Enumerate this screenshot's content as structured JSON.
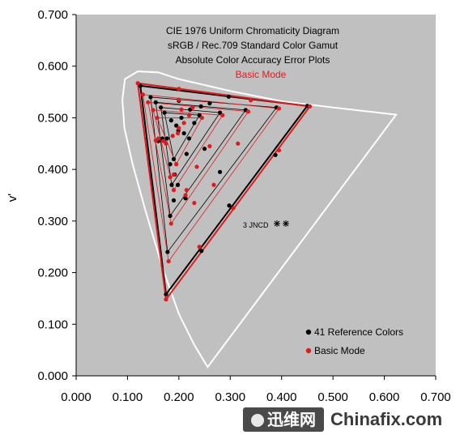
{
  "chart_data": {
    "type": "scatter",
    "title_lines": [
      "CIE 1976 Uniform Chromaticity Diagram",
      "sRGB / Rec.709 Standard Color Gamut",
      "Absolute Color Accuracy Error Plots"
    ],
    "mode_label": "Basic Mode",
    "xlabel": "",
    "ylabel": "v'",
    "xlim": [
      0.0,
      0.7
    ],
    "ylim": [
      0.0,
      0.7
    ],
    "xticks": [
      "0.000",
      "0.100",
      "0.200",
      "0.300",
      "0.400",
      "0.500",
      "0.600",
      "0.700"
    ],
    "yticks": [
      "0.000",
      "0.100",
      "0.200",
      "0.300",
      "0.400",
      "0.500",
      "0.600",
      "0.700"
    ],
    "annotation": "3 JNCD",
    "legend": [
      {
        "label": "41 Reference Colors",
        "color": "#000000"
      },
      {
        "label": "Basic Mode",
        "color": "#e31a1c"
      }
    ],
    "colors": {
      "plot_bg": "#c0c0c0",
      "locus": "#ffffff",
      "reference": "#000000",
      "mode": "#e31a1c"
    },
    "spectral_locus": [
      [
        0.256,
        0.017
      ],
      [
        0.23,
        0.06
      ],
      [
        0.2,
        0.12
      ],
      [
        0.168,
        0.21
      ],
      [
        0.135,
        0.32
      ],
      [
        0.11,
        0.41
      ],
      [
        0.094,
        0.48
      ],
      [
        0.09,
        0.535
      ],
      [
        0.095,
        0.575
      ],
      [
        0.12,
        0.59
      ],
      [
        0.16,
        0.588
      ],
      [
        0.2,
        0.575
      ],
      [
        0.3,
        0.552
      ],
      [
        0.4,
        0.532
      ],
      [
        0.5,
        0.52
      ],
      [
        0.623,
        0.506
      ]
    ],
    "reference_triangles": [
      [
        [
          0.125,
          0.562
        ],
        [
          0.45,
          0.523
        ],
        [
          0.175,
          0.158
        ]
      ],
      [
        [
          0.145,
          0.54
        ],
        [
          0.39,
          0.52
        ],
        [
          0.178,
          0.24
        ]
      ],
      [
        [
          0.155,
          0.53
        ],
        [
          0.33,
          0.515
        ],
        [
          0.183,
          0.31
        ]
      ],
      [
        [
          0.165,
          0.52
        ],
        [
          0.28,
          0.51
        ],
        [
          0.186,
          0.37
        ]
      ],
      [
        [
          0.172,
          0.51
        ],
        [
          0.24,
          0.505
        ],
        [
          0.19,
          0.42
        ]
      ]
    ],
    "mode_triangles": [
      [
        [
          0.12,
          0.567
        ],
        [
          0.455,
          0.522
        ],
        [
          0.175,
          0.148
        ]
      ],
      [
        [
          0.13,
          0.545
        ],
        [
          0.395,
          0.518
        ],
        [
          0.18,
          0.222
        ]
      ],
      [
        [
          0.14,
          0.53
        ],
        [
          0.335,
          0.512
        ],
        [
          0.185,
          0.295
        ]
      ],
      [
        [
          0.15,
          0.515
        ],
        [
          0.285,
          0.505
        ],
        [
          0.19,
          0.36
        ]
      ],
      [
        [
          0.158,
          0.5
        ],
        [
          0.245,
          0.5
        ],
        [
          0.195,
          0.41
        ]
      ]
    ],
    "reference_points": [
      [
        0.125,
        0.562
      ],
      [
        0.45,
        0.523
      ],
      [
        0.175,
        0.158
      ],
      [
        0.297,
        0.541
      ],
      [
        0.388,
        0.428
      ],
      [
        0.244,
        0.242
      ],
      [
        0.145,
        0.54
      ],
      [
        0.39,
        0.52
      ],
      [
        0.178,
        0.24
      ],
      [
        0.26,
        0.528
      ],
      [
        0.298,
        0.33
      ],
      [
        0.213,
        0.344
      ],
      [
        0.155,
        0.53
      ],
      [
        0.33,
        0.515
      ],
      [
        0.183,
        0.31
      ],
      [
        0.243,
        0.522
      ],
      [
        0.28,
        0.395
      ],
      [
        0.198,
        0.37
      ],
      [
        0.165,
        0.52
      ],
      [
        0.28,
        0.51
      ],
      [
        0.186,
        0.37
      ],
      [
        0.222,
        0.516
      ],
      [
        0.25,
        0.44
      ],
      [
        0.192,
        0.39
      ],
      [
        0.172,
        0.51
      ],
      [
        0.24,
        0.505
      ],
      [
        0.19,
        0.42
      ],
      [
        0.2,
        0.533
      ],
      [
        0.22,
        0.46
      ],
      [
        0.177,
        0.46
      ],
      [
        0.195,
        0.485
      ],
      [
        0.205,
        0.5
      ],
      [
        0.185,
        0.495
      ],
      [
        0.21,
        0.47
      ],
      [
        0.168,
        0.46
      ],
      [
        0.16,
        0.455
      ],
      [
        0.183,
        0.41
      ],
      [
        0.19,
        0.34
      ],
      [
        0.215,
        0.43
      ],
      [
        0.23,
        0.49
      ],
      [
        0.199,
        0.475
      ]
    ],
    "mode_points": [
      [
        0.12,
        0.567
      ],
      [
        0.455,
        0.522
      ],
      [
        0.175,
        0.148
      ],
      [
        0.34,
        0.534
      ],
      [
        0.395,
        0.437
      ],
      [
        0.24,
        0.25
      ],
      [
        0.13,
        0.545
      ],
      [
        0.395,
        0.518
      ],
      [
        0.18,
        0.222
      ],
      [
        0.2,
        0.556
      ],
      [
        0.306,
        0.325
      ],
      [
        0.215,
        0.36
      ],
      [
        0.14,
        0.53
      ],
      [
        0.335,
        0.512
      ],
      [
        0.185,
        0.295
      ],
      [
        0.227,
        0.52
      ],
      [
        0.315,
        0.45
      ],
      [
        0.23,
        0.335
      ],
      [
        0.15,
        0.515
      ],
      [
        0.285,
        0.505
      ],
      [
        0.19,
        0.36
      ],
      [
        0.205,
        0.516
      ],
      [
        0.26,
        0.445
      ],
      [
        0.213,
        0.35
      ],
      [
        0.158,
        0.5
      ],
      [
        0.245,
        0.5
      ],
      [
        0.195,
        0.41
      ],
      [
        0.188,
        0.465
      ],
      [
        0.183,
        0.385
      ],
      [
        0.17,
        0.455
      ],
      [
        0.21,
        0.49
      ],
      [
        0.198,
        0.47
      ],
      [
        0.19,
        0.39
      ],
      [
        0.175,
        0.45
      ],
      [
        0.155,
        0.456
      ],
      [
        0.2,
        0.535
      ],
      [
        0.235,
        0.405
      ],
      [
        0.268,
        0.37
      ],
      [
        0.2,
        0.48
      ],
      [
        0.22,
        0.505
      ],
      [
        0.16,
        0.46
      ]
    ]
  }
}
